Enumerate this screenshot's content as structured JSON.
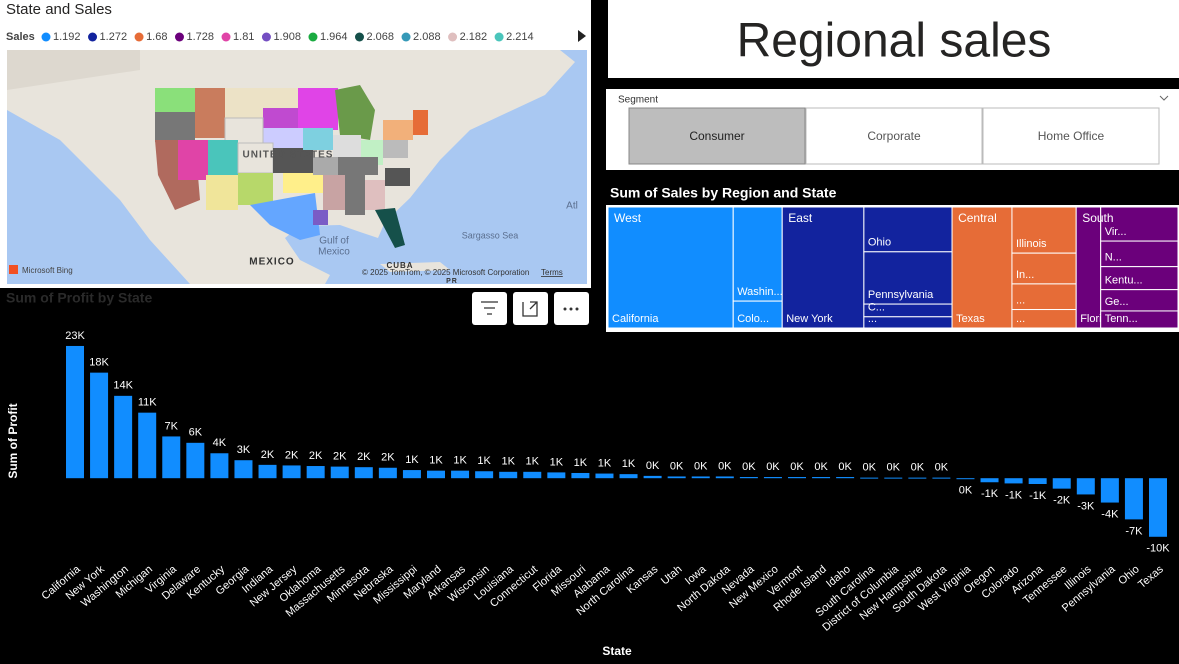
{
  "header": {
    "title": "Regional sales"
  },
  "map": {
    "title": "State and Sales",
    "legend_title": "Sales",
    "legend": [
      {
        "label": "1.192",
        "color": "#118DFF"
      },
      {
        "label": "1.272",
        "color": "#12239E"
      },
      {
        "label": "1.68",
        "color": "#E66C37"
      },
      {
        "label": "1.728",
        "color": "#6B007B"
      },
      {
        "label": "1.81",
        "color": "#E044A7"
      },
      {
        "label": "1.908",
        "color": "#744EC2"
      },
      {
        "label": "1.964",
        "color": "#1AAB40"
      },
      {
        "label": "2.068",
        "color": "#15504A"
      },
      {
        "label": "2.088",
        "color": "#3599B8"
      },
      {
        "label": "2.182",
        "color": "#DFBFBF"
      },
      {
        "label": "2.214",
        "color": "#4AC5BB"
      }
    ],
    "labels": [
      "UNITED STATES",
      "Gulf of",
      "Mexico",
      "MEXICO",
      "CUBA",
      "Sargasso Sea",
      "Atl",
      "PR"
    ],
    "brand": "Microsoft Bing",
    "attribution": "© 2025 TomTom, © 2025 Microsoft Corporation",
    "terms": "Terms"
  },
  "slicer": {
    "title": "Segment",
    "items": [
      "Consumer",
      "Corporate",
      "Home Office"
    ],
    "selected_index": 0
  },
  "treemap": {
    "title": "Sum of Sales by Region and State",
    "groups": [
      {
        "name": "West",
        "color": "#118DFF",
        "items": [
          {
            "name": "California",
            "value": 230000
          },
          {
            "name": "Washin...",
            "value": 70000
          },
          {
            "name": "Colo...",
            "value": 20000
          }
        ]
      },
      {
        "name": "East",
        "color": "#12239E",
        "items": [
          {
            "name": "New York",
            "value": 150000
          },
          {
            "name": "Ohio",
            "value": 60000
          },
          {
            "name": "Pennsylvania",
            "value": 70000
          },
          {
            "name": "C...",
            "value": 17000
          },
          {
            "name": "...",
            "value": 15000
          }
        ]
      },
      {
        "name": "Central",
        "color": "#E66C37",
        "items": [
          {
            "name": "Texas",
            "value": 110000
          },
          {
            "name": "Illinois",
            "value": 45000
          },
          {
            "name": "In...",
            "value": 30000
          },
          {
            "name": "...",
            "value": 25000
          },
          {
            "name": "...",
            "value": 18000
          }
        ]
      },
      {
        "name": "South",
        "color": "#6B007B",
        "items": [
          {
            "name": "Flori...",
            "value": 45000
          },
          {
            "name": "Vir...",
            "value": 40000
          },
          {
            "name": "N...",
            "value": 30000
          },
          {
            "name": "Kentu...",
            "value": 27000
          },
          {
            "name": "Ge...",
            "value": 25000
          },
          {
            "name": "Tenn...",
            "value": 20000
          }
        ]
      }
    ]
  },
  "chart_data": {
    "type": "bar",
    "title": "Sum of Profit by State",
    "x_label": "State",
    "y_label": "Sum of Profit",
    "color": "#118DFF",
    "ylim": [
      -11000,
      24000
    ],
    "categories": [
      "California",
      "New York",
      "Washington",
      "Michigan",
      "Virginia",
      "Delaware",
      "Kentucky",
      "Georgia",
      "Indiana",
      "New Jersey",
      "Oklahoma",
      "Massachusetts",
      "Minnesota",
      "Nebraska",
      "Mississippi",
      "Maryland",
      "Arkansas",
      "Wisconsin",
      "Louisiana",
      "Connecticut",
      "Florida",
      "Missouri",
      "Alabama",
      "North Carolina",
      "Kansas",
      "Utah",
      "Iowa",
      "North Dakota",
      "Nevada",
      "New Mexico",
      "Vermont",
      "Rhode Island",
      "Idaho",
      "South Carolina",
      "District of Columbia",
      "New Hampshire",
      "South Dakota",
      "West Virginia",
      "Oregon",
      "Colorado",
      "Arizona",
      "Tennessee",
      "Illinois",
      "Pennsylvania",
      "Ohio",
      "Texas"
    ],
    "values": [
      22800,
      18200,
      14200,
      11300,
      7200,
      6100,
      4300,
      3100,
      2300,
      2200,
      2100,
      2000,
      1900,
      1800,
      1400,
      1300,
      1300,
      1200,
      1100,
      1100,
      1000,
      900,
      800,
      700,
      400,
      300,
      300,
      300,
      200,
      200,
      200,
      200,
      200,
      100,
      100,
      100,
      100,
      -100,
      -700,
      -900,
      -1000,
      -1800,
      -2800,
      -4200,
      -7100,
      -10100
    ],
    "value_labels": [
      "23K",
      "18K",
      "14K",
      "11K",
      "7K",
      "6K",
      "4K",
      "3K",
      "2K",
      "2K",
      "2K",
      "2K",
      "2K",
      "2K",
      "1K",
      "1K",
      "1K",
      "1K",
      "1K",
      "1K",
      "1K",
      "1K",
      "1K",
      "1K",
      "0K",
      "0K",
      "0K",
      "0K",
      "0K",
      "0K",
      "0K",
      "0K",
      "0K",
      "0K",
      "0K",
      "0K",
      "0K",
      "0K",
      "-1K",
      "-1K",
      "-1K",
      "-2K",
      "-3K",
      "-4K",
      "-7K",
      "-10K"
    ]
  }
}
